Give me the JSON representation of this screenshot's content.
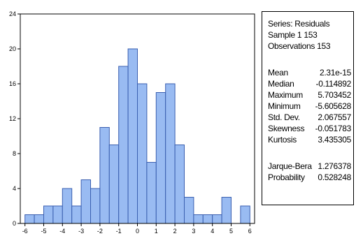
{
  "chart_data": {
    "type": "histogram",
    "bin_width": 0.5,
    "bins": [
      {
        "start": -6.0,
        "count": 1
      },
      {
        "start": -5.5,
        "count": 1
      },
      {
        "start": -5.0,
        "count": 2
      },
      {
        "start": -4.5,
        "count": 2
      },
      {
        "start": -4.0,
        "count": 4
      },
      {
        "start": -3.5,
        "count": 2
      },
      {
        "start": -3.0,
        "count": 5
      },
      {
        "start": -2.5,
        "count": 4
      },
      {
        "start": -2.0,
        "count": 11
      },
      {
        "start": -1.5,
        "count": 9
      },
      {
        "start": -1.0,
        "count": 18
      },
      {
        "start": -0.5,
        "count": 20
      },
      {
        "start": 0.0,
        "count": 16
      },
      {
        "start": 0.5,
        "count": 7
      },
      {
        "start": 1.0,
        "count": 15
      },
      {
        "start": 1.5,
        "count": 16
      },
      {
        "start": 2.0,
        "count": 9
      },
      {
        "start": 2.5,
        "count": 3
      },
      {
        "start": 3.0,
        "count": 1
      },
      {
        "start": 3.5,
        "count": 1
      },
      {
        "start": 4.0,
        "count": 1
      },
      {
        "start": 4.5,
        "count": 3
      },
      {
        "start": 5.0,
        "count": 0
      },
      {
        "start": 5.5,
        "count": 2
      }
    ],
    "xlim": [
      -6.25,
      6.25
    ],
    "ylim": [
      0,
      24
    ],
    "xticks": [
      -6,
      -5,
      -4,
      -3,
      -2,
      -1,
      0,
      1,
      2,
      3,
      4,
      5,
      6
    ],
    "yticks": [
      0,
      4,
      8,
      12,
      16,
      20,
      24
    ],
    "bar_color": "#99bbf2",
    "bar_edge_color": "#3a5fb0",
    "grid": false,
    "legend": "none"
  },
  "stats": {
    "header": [
      "Series: Residuals",
      "Sample 1 153",
      "Observations 153"
    ],
    "rows": [
      {
        "label": "Mean",
        "value": "2.31e-15"
      },
      {
        "label": "Median",
        "value": "-0.114892"
      },
      {
        "label": "Maximum",
        "value": "5.703452"
      },
      {
        "label": "Minimum",
        "value": "-5.605628"
      },
      {
        "label": "Std. Dev.",
        "value": "2.067557"
      },
      {
        "label": "Skewness",
        "value": "-0.051783"
      },
      {
        "label": "Kurtosis",
        "value": "3.435305"
      }
    ],
    "tests": [
      {
        "label": "Jarque-Bera",
        "value": "1.276378"
      },
      {
        "label": "Probability",
        "value": "0.528248"
      }
    ]
  }
}
